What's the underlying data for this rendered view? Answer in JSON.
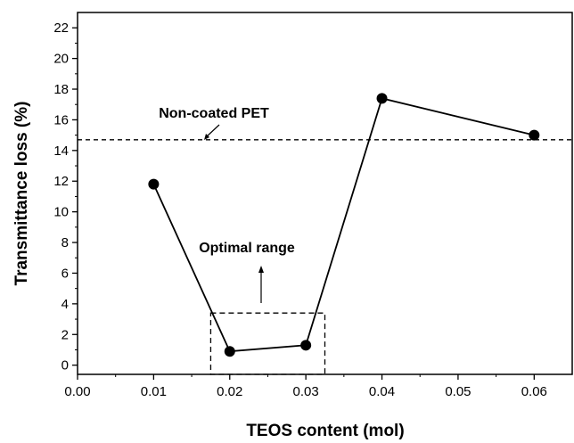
{
  "chart_data": {
    "type": "line",
    "xlabel": "TEOS content (mol)",
    "ylabel": "Transmittance loss (%)",
    "xlim": [
      0.0,
      0.065
    ],
    "ylim": [
      -0.6,
      23.0
    ],
    "x_ticks": [
      "0.00",
      "0.01",
      "0.02",
      "0.03",
      "0.04",
      "0.05",
      "0.06"
    ],
    "y_ticks": [
      "0",
      "2",
      "4",
      "6",
      "8",
      "10",
      "12",
      "14",
      "16",
      "18",
      "20",
      "22"
    ],
    "grid": false,
    "series": [
      {
        "x": [
          0.01,
          0.02,
          0.03,
          0.04,
          0.06
        ],
        "y": [
          11.8,
          0.9,
          1.3,
          17.4,
          15.0
        ],
        "color": "#000000"
      }
    ],
    "reference_line": {
      "y": 14.7,
      "style": "dashed",
      "label": "Non-coated PET"
    },
    "region": {
      "x": [
        0.0175,
        0.0325
      ],
      "y": [
        -0.6,
        3.4
      ],
      "style": "dashed",
      "label": "Optimal range"
    }
  }
}
